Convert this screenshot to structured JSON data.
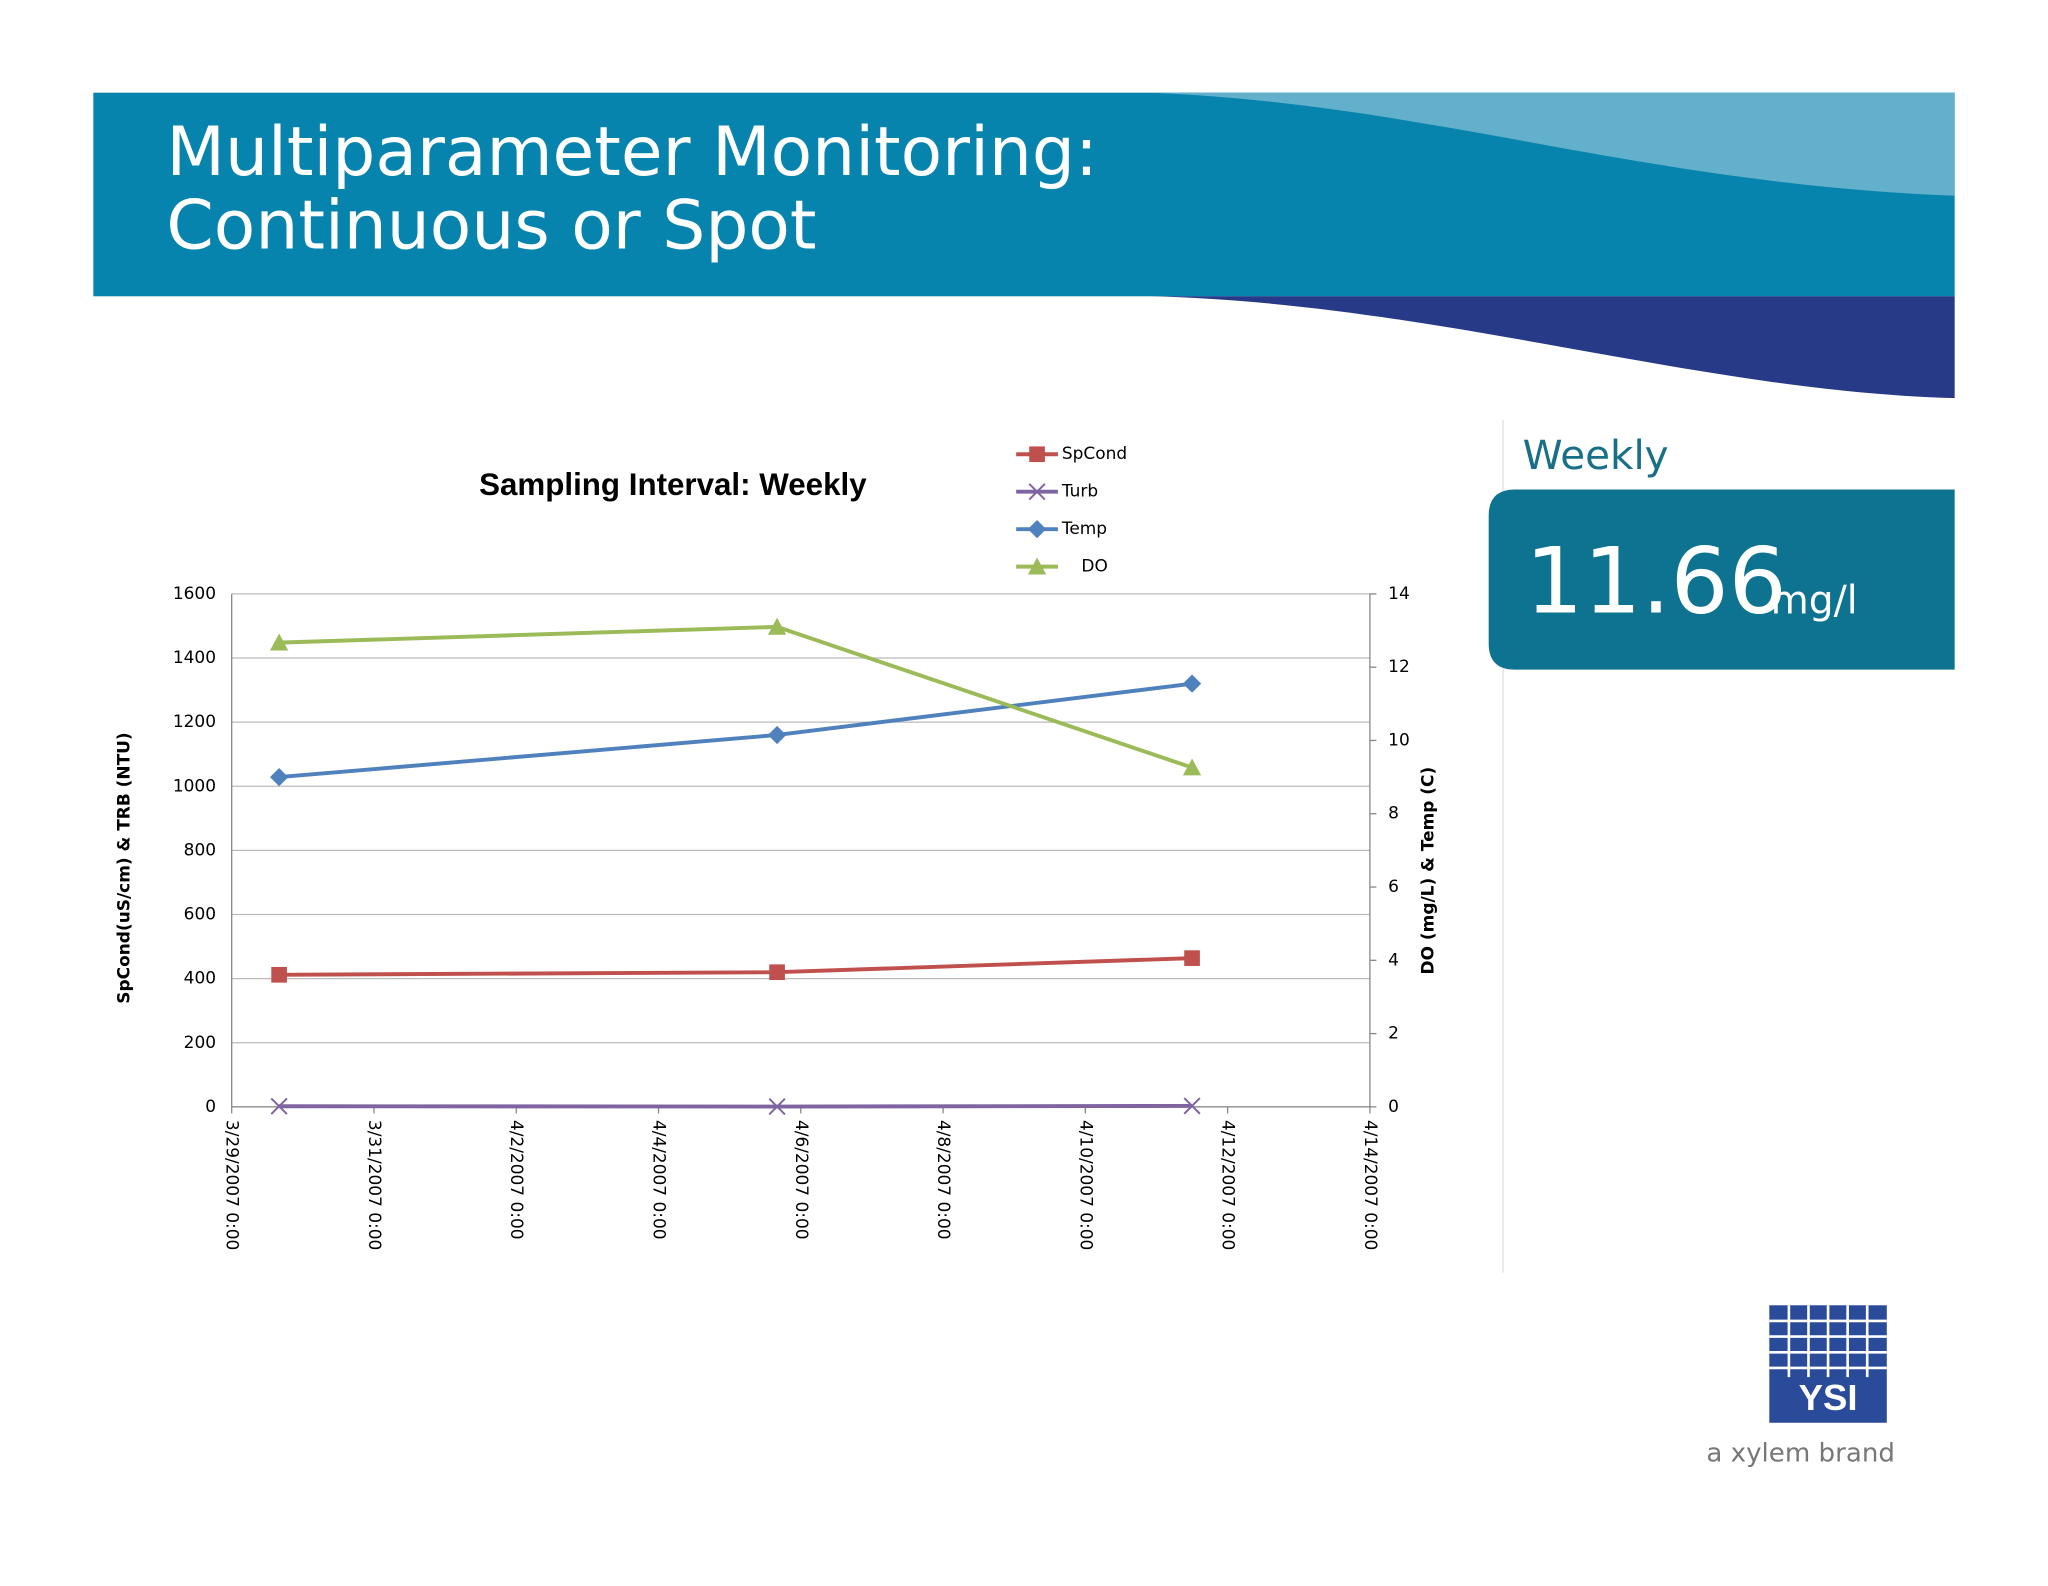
{
  "header": {
    "title": [
      "Multiparameter Monitoring:",
      "Continuous or Spot"
    ]
  },
  "panel": {
    "label": "Weekly",
    "value": 11.66,
    "unit": "mg/l"
  },
  "logo": {
    "name": "YSI",
    "tagline": "a xylem brand"
  },
  "chart_data": {
    "type": "line",
    "title": "Sampling Interval: Weekly",
    "y_label": "SpCond(uS/cm) & TRB (NTU)",
    "y2_label": "DO (mg/L) & Temp (C)",
    "x": [
      "2007-03-29T16:00",
      "2007-04-05T16:00",
      "2007-04-11T12:00"
    ],
    "xlim": [
      "2007-03-29T00:00",
      "2007-04-14T00:00"
    ],
    "xticks": [
      {
        "value": "2007-03-29T00:00",
        "label": "3/29/2007 0:00"
      },
      {
        "value": "2007-03-31T00:00",
        "label": "3/31/2007 0:00"
      },
      {
        "value": "2007-04-02T00:00",
        "label": "4/2/2007 0:00"
      },
      {
        "value": "2007-04-04T00:00",
        "label": "4/4/2007 0:00"
      },
      {
        "value": "2007-04-06T00:00",
        "label": "4/6/2007 0:00"
      },
      {
        "value": "2007-04-08T00:00",
        "label": "4/8/2007 0:00"
      },
      {
        "value": "2007-04-10T00:00",
        "label": "4/10/2007 0:00"
      },
      {
        "value": "2007-04-12T00:00",
        "label": "4/12/2007 0:00"
      },
      {
        "value": "2007-04-14T00:00",
        "label": "4/14/2007 0:00"
      }
    ],
    "ylim": [
      0,
      1600
    ],
    "yticks": [
      0,
      200,
      400,
      600,
      800,
      1000,
      1200,
      1400,
      1600
    ],
    "y2lim": [
      0,
      14
    ],
    "y2ticks": [
      0,
      2,
      4,
      6,
      8,
      10,
      12,
      14
    ],
    "grid": true,
    "series": [
      {
        "name": "SpCond",
        "color": "#c0504d",
        "marker": "square",
        "values": [
          412,
          420,
          464
        ]
      },
      {
        "name": "Turb",
        "color": "#8064a2",
        "marker": "x",
        "values": [
          2,
          1,
          3
        ]
      },
      {
        "name": "Temp",
        "color": "#4f81bd",
        "marker": "diamond",
        "axis": "y2",
        "values": [
          9.0,
          10.15,
          11.55
        ]
      },
      {
        "name": "DO",
        "color": "#9bbb59",
        "marker": "triangle",
        "axis": "y2",
        "values": [
          12.67,
          13.1,
          9.26
        ]
      }
    ]
  }
}
